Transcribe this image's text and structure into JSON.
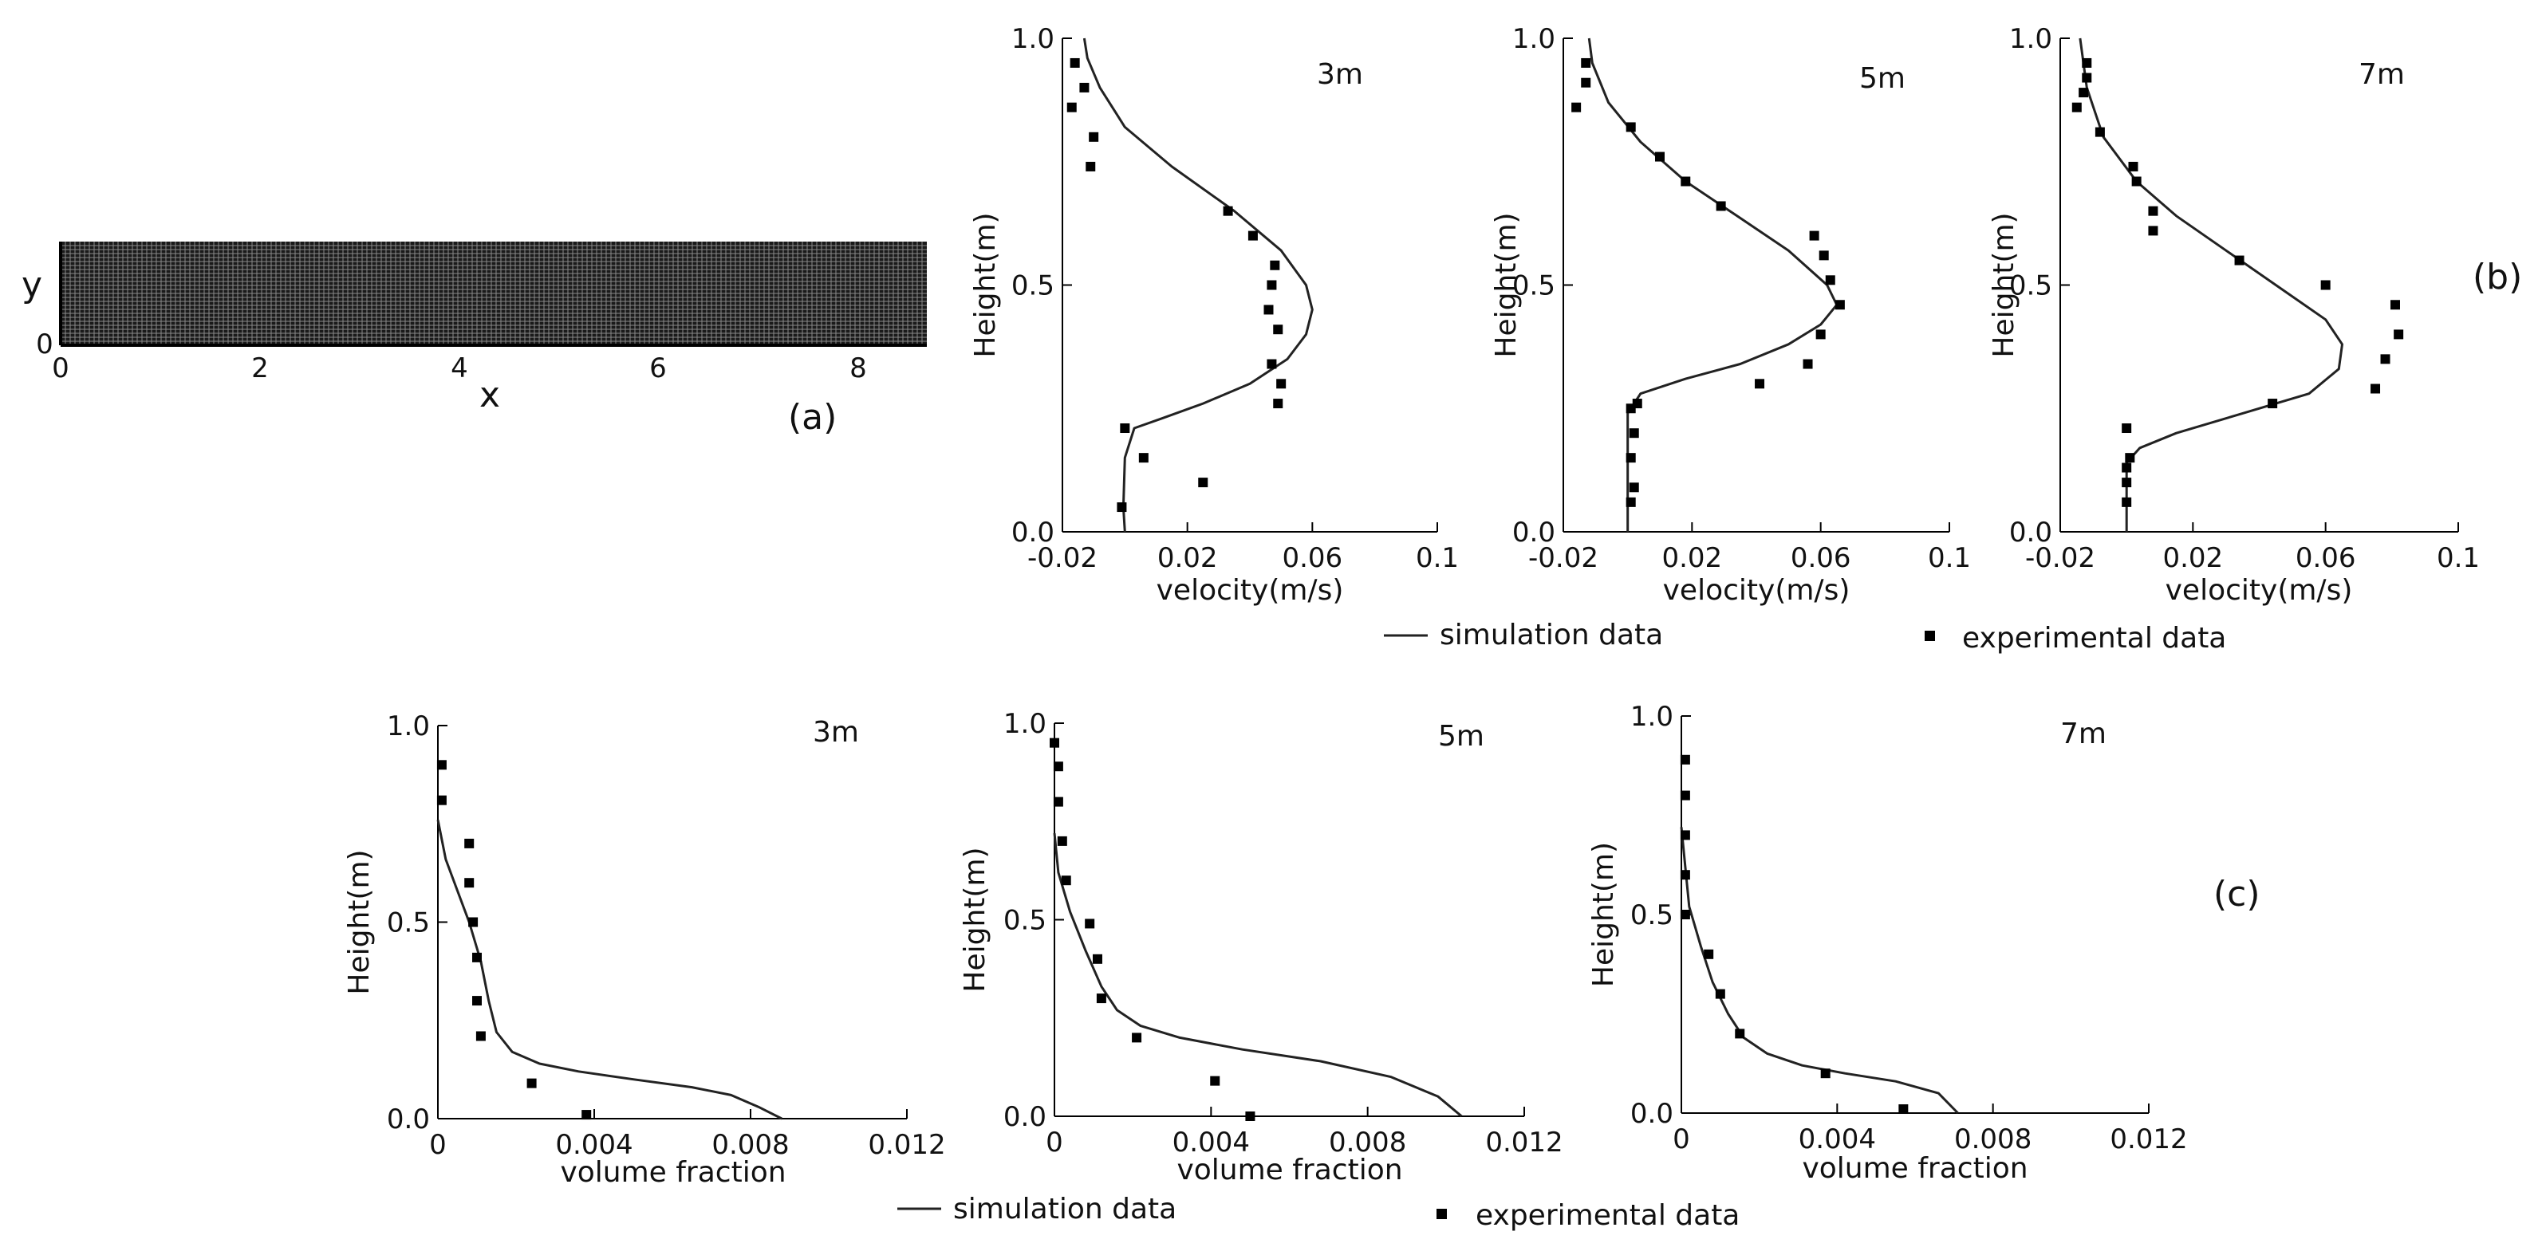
{
  "figure": {
    "panel_a": {
      "label": "(a)",
      "x_axis_label": "x",
      "y_axis_label": "y",
      "x_ticks": [
        "0",
        "2",
        "4",
        "6",
        "8"
      ],
      "y_ticks": [
        "0"
      ],
      "x_range": [
        0,
        8.7
      ],
      "y_range": [
        0,
        1.0
      ]
    },
    "panel_b_label": "(b)",
    "panel_c_label": "(c)",
    "legend_b": {
      "sim": "simulation data",
      "exp": "experimental data"
    },
    "legend_c": {
      "sim": "simulation data",
      "exp": "experimental data"
    }
  },
  "chart_data": [
    {
      "id": "b1",
      "type": "line+scatter",
      "title": "3m",
      "xlabel": "velocity(m/s)",
      "ylabel": "Height(m)",
      "xlim": [
        -0.02,
        0.1
      ],
      "ylim": [
        0,
        1.0
      ],
      "xticks": [
        -0.02,
        0.02,
        0.06,
        0.1
      ],
      "xtick_labels": [
        "-0.02",
        "0.02",
        "0.06",
        "0.1"
      ],
      "yticks": [
        0,
        0.5,
        1.0
      ],
      "ytick_labels": [
        "0.0",
        "0.5",
        "1.0"
      ],
      "series": [
        {
          "name": "simulation data",
          "kind": "line",
          "x": [
            0.0,
            -0.0005,
            0.0,
            0.003,
            0.012,
            0.025,
            0.04,
            0.052,
            0.058,
            0.06,
            0.058,
            0.05,
            0.035,
            0.015,
            0.0,
            -0.008,
            -0.012,
            -0.013
          ],
          "y": [
            0.0,
            0.05,
            0.15,
            0.21,
            0.23,
            0.26,
            0.3,
            0.35,
            0.4,
            0.45,
            0.5,
            0.57,
            0.65,
            0.74,
            0.82,
            0.9,
            0.96,
            1.0
          ]
        },
        {
          "name": "experimental data",
          "kind": "scatter",
          "x": [
            -0.001,
            0.006,
            0.025,
            0.0,
            0.049,
            0.05,
            0.047,
            0.049,
            0.046,
            0.047,
            0.048,
            0.041,
            0.033,
            -0.011,
            -0.01,
            -0.017,
            -0.013,
            -0.016
          ],
          "y": [
            0.05,
            0.15,
            0.1,
            0.21,
            0.26,
            0.3,
            0.34,
            0.41,
            0.45,
            0.5,
            0.54,
            0.6,
            0.65,
            0.74,
            0.8,
            0.86,
            0.9,
            0.95
          ]
        }
      ]
    },
    {
      "id": "b2",
      "type": "line+scatter",
      "title": "5m",
      "xlabel": "velocity(m/s)",
      "ylabel": "Height(m)",
      "xlim": [
        -0.02,
        0.1
      ],
      "ylim": [
        0,
        1.0
      ],
      "xticks": [
        -0.02,
        0.02,
        0.06,
        0.1
      ],
      "xtick_labels": [
        "-0.02",
        "0.02",
        "0.06",
        "0.1"
      ],
      "yticks": [
        0,
        0.5,
        1.0
      ],
      "ytick_labels": [
        "0.0",
        "0.5",
        "1.0"
      ],
      "series": [
        {
          "name": "simulation data",
          "kind": "line",
          "x": [
            0.0,
            0.0,
            0.0,
            0.004,
            0.018,
            0.035,
            0.05,
            0.06,
            0.065,
            0.062,
            0.05,
            0.034,
            0.018,
            0.004,
            -0.006,
            -0.011,
            -0.012
          ],
          "y": [
            0.0,
            0.1,
            0.24,
            0.28,
            0.31,
            0.34,
            0.38,
            0.42,
            0.46,
            0.5,
            0.57,
            0.64,
            0.71,
            0.79,
            0.87,
            0.95,
            1.0
          ]
        },
        {
          "name": "experimental data",
          "kind": "scatter",
          "x": [
            0.001,
            0.002,
            0.001,
            0.002,
            0.001,
            0.003,
            0.041,
            0.056,
            0.06,
            0.066,
            0.063,
            0.061,
            0.058,
            0.029,
            0.018,
            0.01,
            0.001,
            -0.016,
            -0.013,
            -0.013
          ],
          "y": [
            0.06,
            0.09,
            0.15,
            0.2,
            0.25,
            0.26,
            0.3,
            0.34,
            0.4,
            0.46,
            0.51,
            0.56,
            0.6,
            0.66,
            0.71,
            0.76,
            0.82,
            0.86,
            0.91,
            0.95
          ]
        }
      ]
    },
    {
      "id": "b3",
      "type": "line+scatter",
      "title": "7m",
      "xlabel": "velocity(m/s)",
      "ylabel": "Height(m)",
      "xlim": [
        -0.02,
        0.1
      ],
      "ylim": [
        0,
        1.0
      ],
      "xticks": [
        -0.02,
        0.02,
        0.06,
        0.1
      ],
      "xtick_labels": [
        "-0.02",
        "0.02",
        "0.06",
        "0.1"
      ],
      "yticks": [
        0,
        0.5,
        1.0
      ],
      "ytick_labels": [
        "0.0",
        "0.5",
        "1.0"
      ],
      "series": [
        {
          "name": "simulation data",
          "kind": "line",
          "x": [
            0.0,
            0.0,
            0.0,
            0.004,
            0.015,
            0.035,
            0.055,
            0.064,
            0.065,
            0.06,
            0.045,
            0.03,
            0.015,
            0.003,
            -0.007,
            -0.012,
            -0.014
          ],
          "y": [
            0.0,
            0.08,
            0.14,
            0.17,
            0.2,
            0.24,
            0.28,
            0.33,
            0.38,
            0.43,
            0.5,
            0.57,
            0.64,
            0.71,
            0.8,
            0.9,
            1.0
          ]
        },
        {
          "name": "experimental data",
          "kind": "scatter",
          "x": [
            0.0,
            0.0,
            0.0,
            0.001,
            0.0,
            0.044,
            0.075,
            0.078,
            0.082,
            0.081,
            0.06,
            0.034,
            0.008,
            0.008,
            0.003,
            0.002,
            -0.008,
            -0.015,
            -0.013,
            -0.012,
            -0.012
          ],
          "y": [
            0.06,
            0.1,
            0.13,
            0.15,
            0.21,
            0.26,
            0.29,
            0.35,
            0.4,
            0.46,
            0.5,
            0.55,
            0.61,
            0.65,
            0.71,
            0.74,
            0.81,
            0.86,
            0.89,
            0.92,
            0.95
          ]
        }
      ]
    },
    {
      "id": "c1",
      "type": "line+scatter",
      "title": "3m",
      "xlabel": "volume fraction",
      "ylabel": "Height(m)",
      "xlim": [
        0,
        0.012
      ],
      "ylim": [
        0,
        1.0
      ],
      "xticks": [
        0,
        0.004,
        0.008,
        0.012
      ],
      "xtick_labels": [
        "0",
        "0.004",
        "0.008",
        "0.012"
      ],
      "yticks": [
        0,
        0.5,
        1.0
      ],
      "ytick_labels": [
        "0.0",
        "0.5",
        "1.0"
      ],
      "series": [
        {
          "name": "simulation data",
          "kind": "line",
          "x": [
            0.0088,
            0.0082,
            0.0075,
            0.0065,
            0.005,
            0.0036,
            0.0026,
            0.0019,
            0.0015,
            0.0013,
            0.0011,
            0.0008,
            0.0005,
            0.0002,
            0.0
          ],
          "y": [
            0.0,
            0.03,
            0.06,
            0.08,
            0.1,
            0.12,
            0.14,
            0.17,
            0.22,
            0.3,
            0.4,
            0.5,
            0.58,
            0.66,
            0.76
          ]
        },
        {
          "name": "experimental data",
          "kind": "scatter",
          "x": [
            0.0038,
            0.0024,
            0.0011,
            0.001,
            0.001,
            0.0009,
            0.0008,
            0.0008,
            0.0001,
            0.0001
          ],
          "y": [
            0.01,
            0.09,
            0.21,
            0.3,
            0.41,
            0.5,
            0.6,
            0.7,
            0.81,
            0.9
          ]
        }
      ]
    },
    {
      "id": "c2",
      "type": "line+scatter",
      "title": "5m",
      "xlabel": "volume fraction",
      "ylabel": "Height(m)",
      "xlim": [
        0,
        0.012
      ],
      "ylim": [
        0,
        1.0
      ],
      "xticks": [
        0,
        0.004,
        0.008,
        0.012
      ],
      "xtick_labels": [
        "0",
        "0.004",
        "0.008",
        "0.012"
      ],
      "yticks": [
        0,
        0.5,
        1.0
      ],
      "ytick_labels": [
        "0.0",
        "0.5",
        "1.0"
      ],
      "series": [
        {
          "name": "simulation data",
          "kind": "line",
          "x": [
            0.0104,
            0.0098,
            0.0086,
            0.0068,
            0.0048,
            0.0032,
            0.0022,
            0.0016,
            0.0012,
            0.0008,
            0.0004,
            0.0001,
            0.0
          ],
          "y": [
            0.0,
            0.05,
            0.1,
            0.14,
            0.17,
            0.2,
            0.23,
            0.27,
            0.33,
            0.42,
            0.52,
            0.62,
            0.72
          ]
        },
        {
          "name": "experimental data",
          "kind": "scatter",
          "x": [
            0.005,
            0.0041,
            0.0021,
            0.0012,
            0.0011,
            0.0009,
            0.0003,
            0.0002,
            0.0001,
            0.0001,
            0.0
          ],
          "y": [
            0.0,
            0.09,
            0.2,
            0.3,
            0.4,
            0.49,
            0.6,
            0.7,
            0.8,
            0.89,
            0.95
          ]
        }
      ]
    },
    {
      "id": "c3",
      "type": "line+scatter",
      "title": "7m",
      "xlabel": "volume fraction",
      "ylabel": "Height(m)",
      "xlim": [
        0,
        0.012
      ],
      "ylim": [
        0,
        1.0
      ],
      "xticks": [
        0,
        0.004,
        0.008,
        0.012
      ],
      "xtick_labels": [
        "0",
        "0.004",
        "0.008",
        "0.012"
      ],
      "yticks": [
        0,
        0.5,
        1.0
      ],
      "ytick_labels": [
        "0.0",
        "0.5",
        "1.0"
      ],
      "series": [
        {
          "name": "simulation data",
          "kind": "line",
          "x": [
            0.0071,
            0.0066,
            0.0055,
            0.0042,
            0.0031,
            0.0022,
            0.0016,
            0.0012,
            0.0008,
            0.0005,
            0.0002,
            0.0001,
            0.0
          ],
          "y": [
            0.0,
            0.05,
            0.08,
            0.1,
            0.12,
            0.15,
            0.19,
            0.25,
            0.33,
            0.42,
            0.52,
            0.62,
            0.72
          ]
        },
        {
          "name": "experimental data",
          "kind": "scatter",
          "x": [
            0.0057,
            0.0037,
            0.0015,
            0.001,
            0.0007,
            0.0001,
            0.0001,
            0.0001,
            0.0001,
            0.0001
          ],
          "y": [
            0.01,
            0.1,
            0.2,
            0.3,
            0.4,
            0.5,
            0.6,
            0.7,
            0.8,
            0.89
          ]
        }
      ]
    }
  ]
}
